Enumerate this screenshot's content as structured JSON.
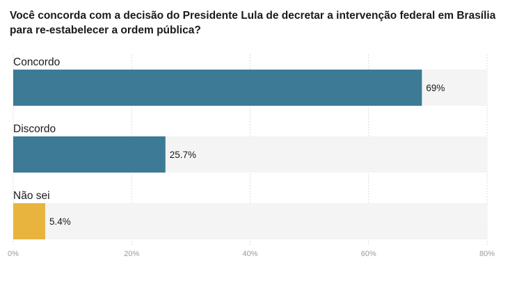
{
  "chart_data": {
    "type": "bar",
    "orientation": "horizontal",
    "title": "Você concorda com a decisão do Presidente Lula de decretar a intervenção federal em Brasília para re-estabelecer a ordem pública?",
    "categories": [
      "Concordo",
      "Discordo",
      "Não sei"
    ],
    "values": [
      69,
      25.7,
      5.4
    ],
    "value_labels": [
      "69%",
      "25.7%",
      "5.4%"
    ],
    "bar_colors": [
      "#3d7a96",
      "#3d7a96",
      "#e8b43e"
    ],
    "track_color": "#f4f4f4",
    "xlim": [
      0,
      80
    ],
    "ticks": [
      0,
      20,
      40,
      60,
      80
    ],
    "tick_labels": [
      "0%",
      "20%",
      "40%",
      "60%",
      "80%"
    ],
    "grid": true,
    "legend": "none"
  }
}
